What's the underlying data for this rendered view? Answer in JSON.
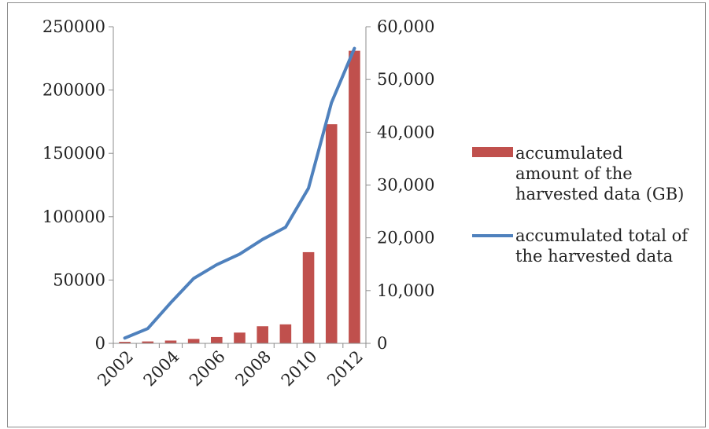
{
  "chart_data": {
    "type": "bar+line",
    "categories": [
      "2002",
      "2003",
      "2004",
      "2005",
      "2006",
      "2007",
      "2008",
      "2009",
      "2010",
      "2011",
      "2012"
    ],
    "x_tick_labels": [
      "2002",
      "2004",
      "2006",
      "2008",
      "2010",
      "2012"
    ],
    "series": [
      {
        "name": "accumulated amount of the harvested data (GB)",
        "name_lines": [
          "accumulated",
          "amount of the",
          "harvested data (GB)"
        ],
        "type": "bar",
        "axis": "left",
        "color": "#c0504d",
        "values": [
          1200,
          1500,
          2200,
          3500,
          5000,
          8500,
          13500,
          15000,
          72000,
          173000,
          231000
        ]
      },
      {
        "name": "accumulated total of the harvested data",
        "name_lines": [
          "accumulated total of",
          "the harvested data"
        ],
        "type": "line",
        "axis": "right",
        "color": "#4f81bd",
        "values": [
          1000,
          2800,
          7700,
          12300,
          14900,
          16900,
          19700,
          22000,
          29400,
          45600,
          55900
        ]
      }
    ],
    "y_left": {
      "min": 0,
      "max": 250000,
      "ticks": [
        "0",
        "50000",
        "100000",
        "150000",
        "200000",
        "250000"
      ]
    },
    "y_right": {
      "min": 0,
      "max": 60000,
      "ticks": [
        "0",
        "10,000",
        "20,000",
        "30,000",
        "40,000",
        "50,000",
        "60,000"
      ]
    },
    "grid": false,
    "legend": "right"
  }
}
